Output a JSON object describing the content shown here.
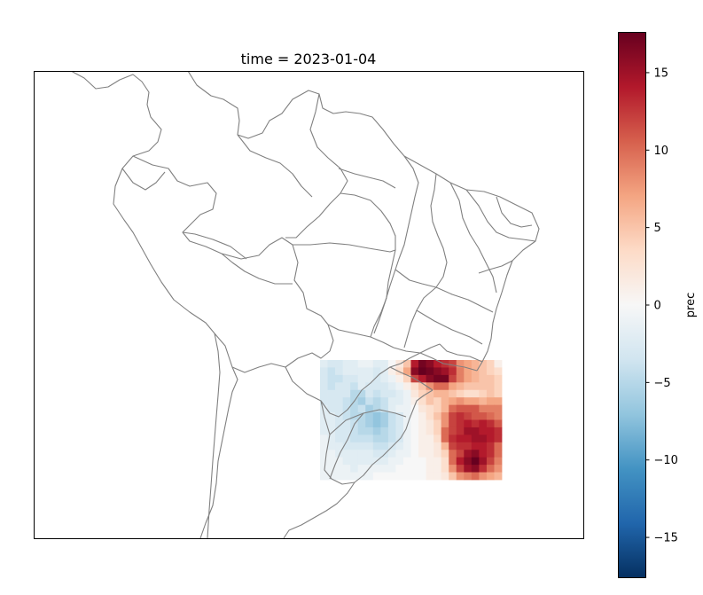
{
  "title": "time = 2023-01-04",
  "colorbar": {
    "label": "prec",
    "range": [
      -17.6,
      17.6
    ],
    "ticks": [
      15,
      10,
      5,
      0,
      -5,
      -10,
      -15
    ],
    "tick_labels": [
      "15",
      "10",
      "5",
      "0",
      "−5",
      "−10",
      "−15"
    ],
    "colormap": "RdBu_r",
    "colors": [
      "#053061",
      "#2166ac",
      "#4393c3",
      "#92c5de",
      "#d1e5f0",
      "#f7f7f7",
      "#fddbc7",
      "#f4a582",
      "#d6604d",
      "#b2182b",
      "#67001f"
    ]
  },
  "map": {
    "region": "South America (Brazil and neighbours)",
    "border_color": "#808080"
  },
  "field": {
    "name": "prec",
    "rows": 16,
    "cols": 24,
    "values": [
      [
        -2,
        -3,
        -3,
        -2,
        -2,
        -1,
        -1,
        -2,
        -2,
        0,
        2,
        5,
        14,
        17,
        16,
        14,
        13,
        12,
        8,
        7,
        6,
        5,
        4,
        1
      ],
      [
        -3,
        -4,
        -3,
        -2,
        -2,
        -2,
        -2,
        -3,
        -2,
        1,
        3,
        7,
        16,
        18,
        17,
        16,
        15,
        13,
        9,
        7,
        6,
        5,
        4,
        3
      ],
      [
        -3,
        -4,
        -4,
        -3,
        -3,
        -2,
        -2,
        -3,
        -2,
        -1,
        1,
        4,
        12,
        14,
        16,
        17,
        17,
        12,
        9,
        7,
        6,
        5,
        5,
        4
      ],
      [
        -3,
        -4,
        -3,
        -3,
        -4,
        -2,
        -3,
        -3,
        -3,
        -2,
        -1,
        1,
        3,
        5,
        8,
        10,
        10,
        7,
        6,
        5,
        5,
        5,
        5,
        4
      ],
      [
        -3,
        -3,
        -3,
        -3,
        -5,
        -5,
        -3,
        -4,
        -3,
        -3,
        -2,
        -1,
        2,
        4,
        5,
        6,
        6,
        5,
        4,
        3,
        3,
        4,
        5,
        4
      ],
      [
        -3,
        -3,
        -3,
        -4,
        -5,
        -6,
        -4,
        -5,
        -4,
        -2,
        -2,
        -1,
        1,
        3,
        5,
        4,
        6,
        7,
        8,
        7,
        7,
        6,
        7,
        7
      ],
      [
        -2,
        -3,
        -3,
        -4,
        -5,
        -4,
        -6,
        -5,
        -4,
        -2,
        -1,
        -1,
        0,
        2,
        3,
        4,
        6,
        10,
        11,
        11,
        11,
        9,
        9,
        9
      ],
      [
        -2,
        -2,
        -3,
        -4,
        -5,
        -5,
        -6,
        -7,
        -6,
        -4,
        -3,
        -1,
        0,
        1,
        3,
        5,
        8,
        12,
        13,
        12,
        11,
        11,
        10,
        9
      ],
      [
        -2,
        -2,
        -3,
        -3,
        -4,
        -5,
        -6,
        -7,
        -6,
        -4,
        -3,
        -1,
        0,
        1,
        2,
        4,
        8,
        12,
        13,
        14,
        13,
        14,
        13,
        11
      ],
      [
        -2,
        -2,
        -3,
        -3,
        -4,
        -5,
        -5,
        -6,
        -5,
        -4,
        -3,
        -1,
        0,
        1,
        2,
        4,
        10,
        12,
        13,
        15,
        15,
        14,
        14,
        13
      ],
      [
        -1,
        -2,
        -3,
        -3,
        -4,
        -4,
        -4,
        -5,
        -5,
        -4,
        -3,
        -1,
        0,
        1,
        1,
        3,
        10,
        13,
        14,
        14,
        15,
        15,
        14,
        13
      ],
      [
        -1,
        -2,
        -2,
        -3,
        -3,
        -3,
        -3,
        -4,
        -4,
        -3,
        -2,
        -1,
        0,
        1,
        1,
        2,
        6,
        12,
        13,
        13,
        14,
        14,
        13,
        10
      ],
      [
        -1,
        -1,
        -2,
        -2,
        -2,
        -2,
        -2,
        -3,
        -3,
        -2,
        -1,
        -1,
        0,
        1,
        1,
        2,
        4,
        10,
        12,
        15,
        16,
        14,
        13,
        10
      ],
      [
        -1,
        -1,
        -1,
        -2,
        -2,
        -2,
        -2,
        -2,
        -2,
        -1,
        -1,
        0,
        0,
        0,
        1,
        1,
        3,
        10,
        14,
        16,
        18,
        15,
        12,
        9
      ],
      [
        -1,
        -1,
        -1,
        -1,
        -2,
        -1,
        -1,
        -1,
        -1,
        -1,
        0,
        0,
        0,
        0,
        1,
        1,
        3,
        8,
        12,
        15,
        16,
        13,
        10,
        8
      ],
      [
        -1,
        -1,
        -1,
        -1,
        -1,
        -1,
        -1,
        0,
        0,
        0,
        0,
        0,
        0,
        0,
        1,
        1,
        2,
        5,
        8,
        9,
        10,
        8,
        7,
        6
      ]
    ]
  }
}
